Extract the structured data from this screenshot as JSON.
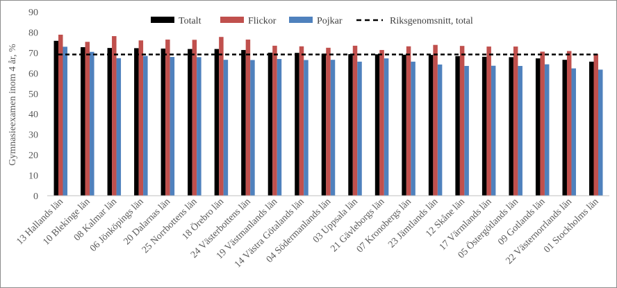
{
  "chart_data": {
    "type": "bar",
    "ylabel": "Gymnasieexamen inom 4 år, %",
    "xlabel": "",
    "ylim": [
      0,
      90
    ],
    "yticks": [
      "0",
      "10",
      "20",
      "30",
      "40",
      "50",
      "60",
      "70",
      "80",
      "90"
    ],
    "grid": false,
    "legend_position": "top",
    "categories": [
      "13 Hallands län",
      "10 Blekinge län",
      "08 Kalmar län",
      "06 Jönköpings län",
      "20 Dalarnas län",
      "25 Norrbottens län",
      "18 Örebro län",
      "24 Västerbottens län",
      "19 Västmanlands län",
      "14 Västra Götalands län",
      "04 Södermanlands län",
      "03 Uppsala län",
      "21 Gävleborgs län",
      "07 Kronobergs län",
      "23 Jämtlands län",
      "12 Skåne län",
      "17 Värmlands län",
      "05 Östergötlands län",
      "09 Gotlands län",
      "22 Västernorrlands län",
      "01 Stockholms län"
    ],
    "series": [
      {
        "name": "Totalt",
        "color": "#000000",
        "values": [
          75.8,
          72.7,
          72.3,
          72.2,
          72.0,
          71.8,
          71.8,
          71.3,
          70.0,
          69.9,
          69.5,
          69.3,
          69.2,
          69.0,
          68.9,
          68.3,
          68.0,
          67.8,
          67.2,
          66.5,
          65.6
        ]
      },
      {
        "name": "Flickor",
        "color": "#c0504d",
        "values": [
          78.8,
          75.3,
          78.1,
          76.0,
          76.4,
          76.3,
          77.7,
          76.4,
          73.4,
          73.1,
          72.4,
          73.4,
          71.3,
          73.1,
          73.8,
          73.3,
          73.0,
          73.0,
          70.5,
          70.8,
          69.4
        ]
      },
      {
        "name": "Pojkar",
        "color": "#4f81bd",
        "values": [
          72.9,
          70.4,
          67.3,
          68.4,
          67.9,
          67.8,
          66.5,
          66.4,
          66.9,
          66.4,
          66.5,
          65.6,
          67.2,
          65.6,
          64.2,
          63.5,
          63.6,
          63.5,
          64.3,
          62.3,
          61.7
        ]
      }
    ],
    "reference_line": {
      "name": "Riksgenomsnitt, total",
      "value": 69.1,
      "color": "#000000",
      "style": "dashed"
    }
  }
}
